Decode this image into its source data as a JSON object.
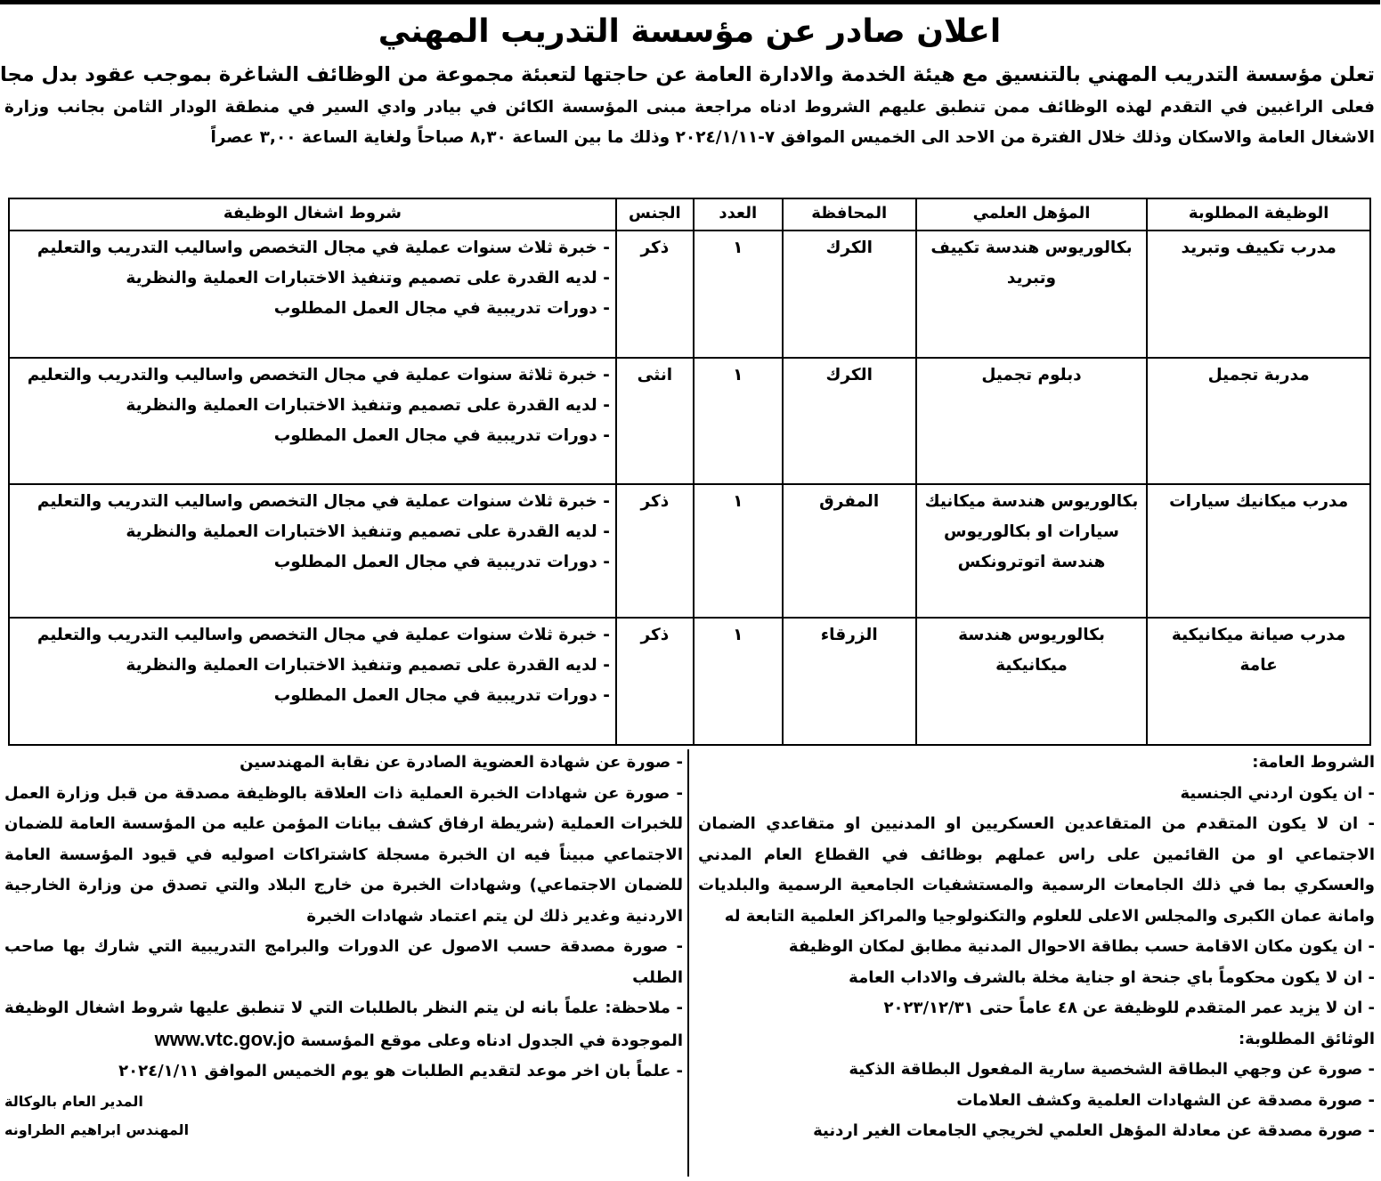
{
  "header": {
    "title": "اعلان صادر عن مؤسسة التدريب المهني",
    "subtitle": "تعلن مؤسسة التدريب المهني بالتنسيق مع هيئة الخدمة والادارة العامة عن حاجتها لتعبئة مجموعة من الوظائف الشاغرة بموجب عقود بدل مجاز",
    "intro": "فعلى الراغبين في التقدم لهذه الوظائف ممن تنطبق عليهم الشروط ادناه مراجعة مبنى المؤسسة الكائن في بيادر وادي السير في منطقة الودار الثامن بجانب وزارة الاشغال العامة والاسكان وذلك خلال الفترة من الاحد الى الخميس الموافق ٧-٢٠٢٤/١/١١ وذلك ما بين الساعة ٨,٣٠ صباحاً ولغاية الساعة ٣,٠٠ عصراً"
  },
  "table": {
    "headers": {
      "job": "الوظيفة المطلوبة",
      "qualification": "المؤهل العلمي",
      "governorate": "المحافظة",
      "count": "العدد",
      "gender": "الجنس",
      "conditions": "شروط اشغال الوظيفة"
    },
    "rows": [
      {
        "job": "مدرب تكييف وتبريد",
        "qualification": "بكالوريوس هندسة تكييف وتبريد",
        "governorate": "الكرك",
        "count": "١",
        "gender": "ذكر",
        "conditions": [
          "- خبرة ثلاث سنوات عملية في مجال التخصص واساليب التدريب والتعليم",
          "- لديه القدرة على تصميم وتنفيذ الاختبارات العملية والنظرية",
          "- دورات تدريبية في مجال العمل المطلوب"
        ]
      },
      {
        "job": "مدربة تجميل",
        "qualification": "دبلوم تجميل",
        "governorate": "الكرك",
        "count": "١",
        "gender": "انثى",
        "conditions": [
          "- خبرة ثلاثة سنوات عملية في مجال التخصص واساليب والتدريب والتعليم",
          "- لديه القدرة على تصميم وتنفيذ الاختبارات العملية والنظرية",
          "- دورات تدريبية في مجال العمل المطلوب"
        ]
      },
      {
        "job": "مدرب ميكانيك سيارات",
        "qualification": "بكالوريوس هندسة ميكانيك سيارات او بكالوريوس هندسة اتوترونكس",
        "governorate": "المفرق",
        "count": "١",
        "gender": "ذكر",
        "conditions": [
          "- خبرة ثلاث سنوات عملية في مجال التخصص واساليب التدريب والتعليم",
          "- لديه القدرة على تصميم وتنفيذ الاختبارات العملية والنظرية",
          "- دورات تدريبية في مجال العمل المطلوب"
        ]
      },
      {
        "job": "مدرب صيانة ميكانيكية عامة",
        "qualification": "بكالوريوس هندسة ميكانيكية",
        "governorate": "الزرقاء",
        "count": "١",
        "gender": "ذكر",
        "conditions": [
          "- خبرة ثلاث سنوات عملية في مجال التخصص واساليب التدريب والتعليم",
          "- لديه القدرة على تصميم وتنفيذ الاختبارات العملية والنظرية",
          "- دورات تدريبية في مجال العمل المطلوب"
        ]
      }
    ]
  },
  "general_conditions": {
    "heading": "الشروط العامة:",
    "items": [
      "- ان يكون اردني الجنسية",
      "- ان لا يكون المتقدم من المتقاعدين العسكريين او المدنيين او متقاعدي الضمان الاجتماعي او من القائمين على راس عملهم بوظائف في القطاع العام المدني والعسكري بما في ذلك الجامعات الرسمية والمستشفيات الجامعية الرسمية والبلديات وامانة عمان الكبرى والمجلس الاعلى للعلوم والتكنولوجيا والمراكز العلمية التابعة له",
      "- ان يكون مكان الاقامة حسب بطاقة الاحوال المدنية مطابق لمكان الوظيفة",
      "- ان لا يكون محكوماً باي جنحة او جناية مخلة بالشرف والاداب العامة",
      "- ان لا يزيد عمر المتقدم للوظيفة عن ٤٨ عاماً حتى ٢٠٢٣/١٢/٣١"
    ]
  },
  "required_documents": {
    "heading": "الوثائق المطلوبة:",
    "items": [
      "- صورة عن وجهي البطاقة الشخصية سارية المفعول البطاقة الذكية",
      "- صورة مصدقة عن الشهادات العلمية وكشف العلامات",
      "- صورة مصدقة عن معادلة المؤهل العلمي لخريجي الجامعات الغير اردنية"
    ],
    "continued": [
      "- صورة عن شهادة العضوية الصادرة عن نقابة المهندسين",
      "- صورة عن شهادات الخبرة العملية ذات العلاقة بالوظيفة مصدقة من قبل وزارة العمل للخبرات العملية (شريطة ارفاق كشف بيانات المؤمن عليه من المؤسسة العامة للضمان الاجتماعي مبيناً فيه ان الخبرة مسجلة كاشتراكات اصوليه في قيود المؤسسة العامة للضمان الاجتماعي) وشهادات الخبرة من خارج البلاد والتي تصدق من وزارة الخارجية الاردنية وغدير ذلك لن يتم اعتماد شهادات الخبرة",
      "- صورة مصدقة حسب الاصول عن الدورات والبرامج التدريبية التي شارك بها صاحب الطلب"
    ],
    "note": "- ملاحظة: علماً بانه لن يتم النظر بالطلبات التي لا تنطبق عليها شروط اشغال الوظيفة الموجودة في الجدول ادناه وعلى موقع المؤسسة",
    "website": "www.vtc.gov.jo",
    "deadline": "- علماً بان اخر موعد لتقديم الطلبات هو يوم الخميس الموافق ٢٠٢٤/١/١١"
  },
  "signature": {
    "title": "المدير العام بالوكالة",
    "name": "المهندس ابراهيم الطراونه"
  }
}
